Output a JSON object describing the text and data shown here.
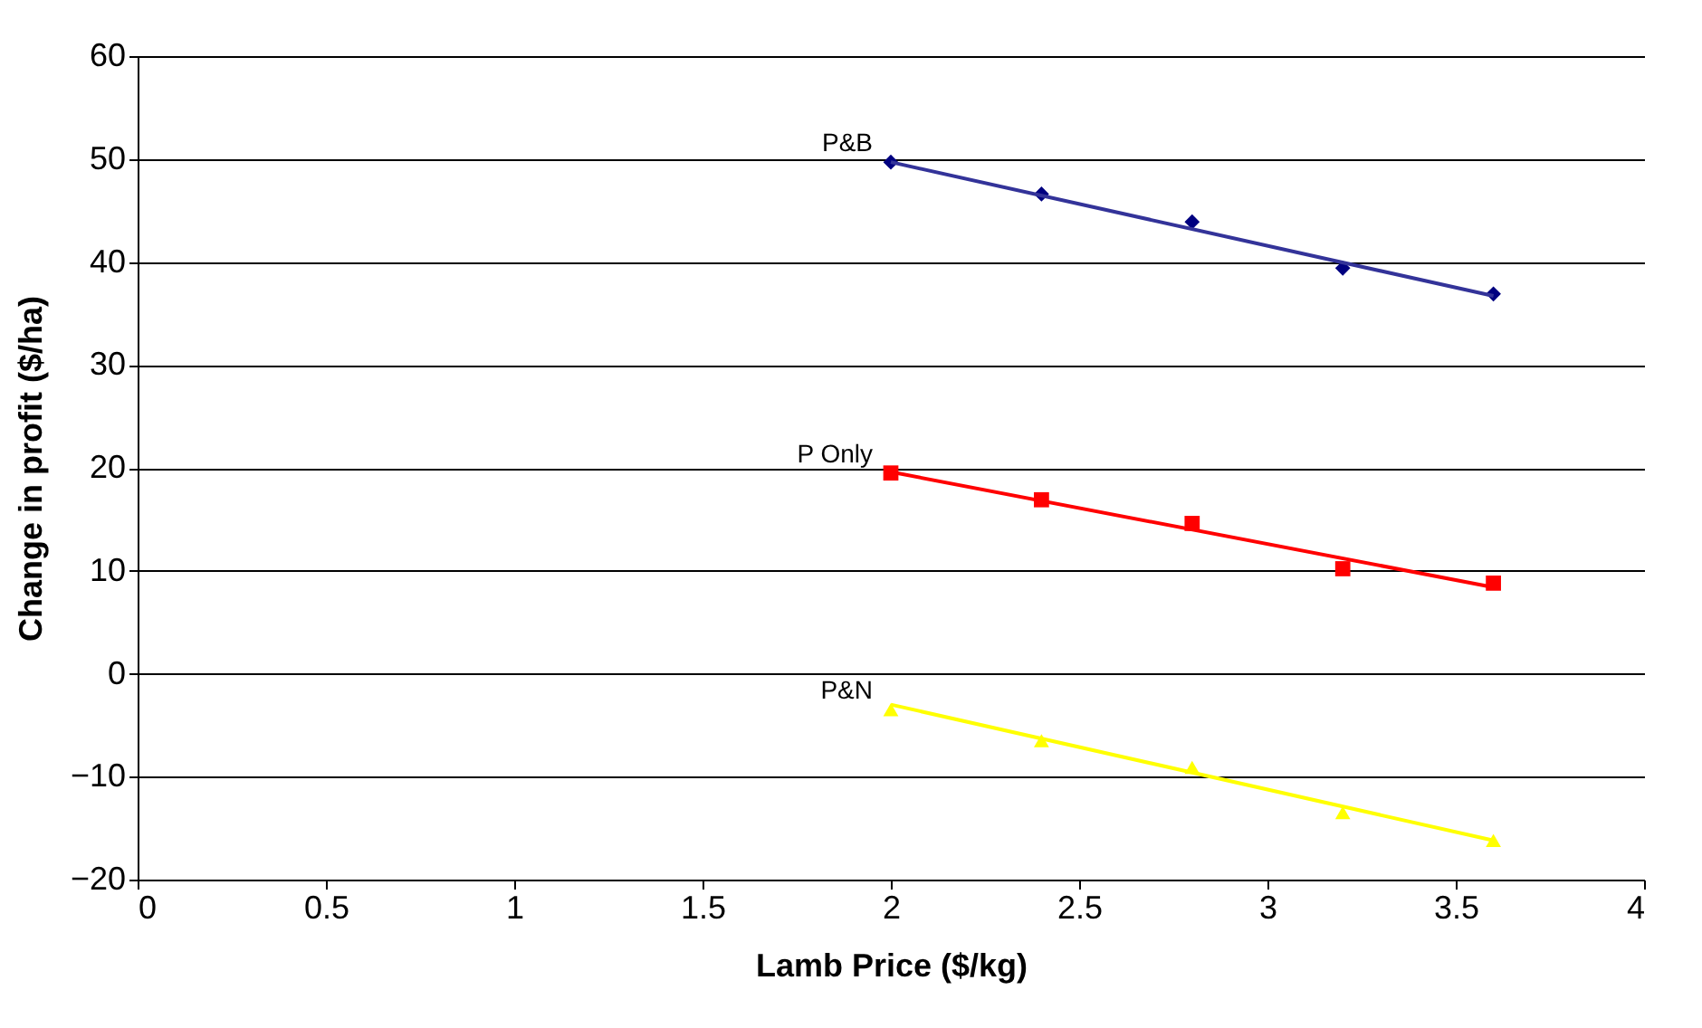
{
  "chart_data": {
    "type": "scatter",
    "xlabel": "Lamb Price ($/kg)",
    "ylabel": "Change in profit ($/ha)",
    "xlim": [
      0,
      4
    ],
    "xticks": [
      0,
      0.5,
      1,
      1.5,
      2,
      2.5,
      3,
      3.5,
      4
    ],
    "ylim": [
      -20,
      60
    ],
    "yticks": [
      -20,
      -10,
      0,
      10,
      20,
      30,
      40,
      50,
      60
    ],
    "grid": "y",
    "series": [
      {
        "name": "P&B",
        "color": "#000080",
        "marker": "diamond",
        "x": [
          2,
          2.4,
          2.8,
          3.2,
          3.6
        ],
        "values": [
          49.7,
          46.6,
          43.9,
          39.4,
          36.9
        ]
      },
      {
        "type": "line",
        "color": "#333399",
        "marker": "none",
        "x": [
          2,
          3.6
        ],
        "values": [
          49.7,
          36.7
        ]
      },
      {
        "name": "P Only",
        "color": "#ff0000",
        "marker": "square",
        "x": [
          2,
          2.4,
          2.8,
          3.2,
          3.6
        ],
        "values": [
          19.5,
          16.9,
          14.6,
          10.2,
          8.8
        ]
      },
      {
        "type": "line",
        "color": "#ff0000",
        "marker": "none",
        "x": [
          2,
          3.6
        ],
        "values": [
          19.6,
          8.4
        ]
      },
      {
        "name": "P&N",
        "color": "#ffff00",
        "marker": "triangle",
        "x": [
          2,
          2.4,
          2.8,
          3.2,
          3.6
        ],
        "values": [
          -3.5,
          -6.5,
          -9.1,
          -13.5,
          -16.2
        ]
      },
      {
        "type": "line",
        "color": "#ffff00",
        "marker": "none",
        "x": [
          2,
          3.6
        ],
        "values": [
          -3.0,
          -16.2
        ]
      }
    ]
  }
}
